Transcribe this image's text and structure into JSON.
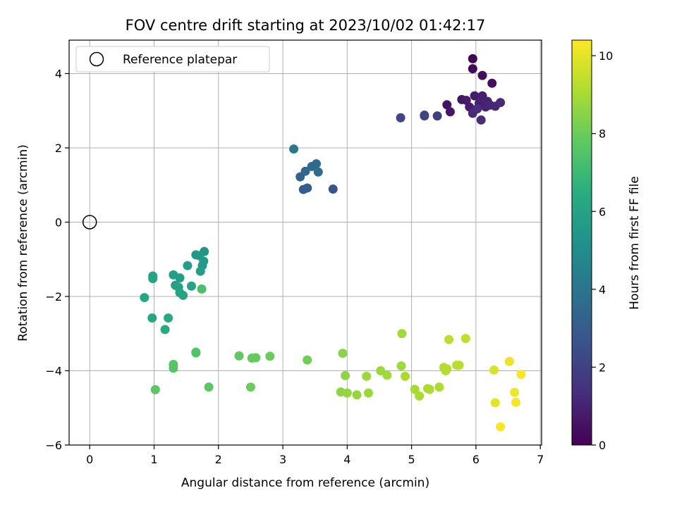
{
  "chart_data": {
    "type": "scatter",
    "title": "FOV centre drift starting at 2023/10/02 01:42:17",
    "xlabel": "Angular distance from reference (arcmin)",
    "ylabel": "Rotation from reference (arcmin)",
    "xlim": [
      -0.32,
      7.02
    ],
    "ylim": [
      -6.0,
      4.9
    ],
    "xticks": [
      0,
      1,
      2,
      3,
      4,
      5,
      6,
      7
    ],
    "yticks": [
      -6,
      -4,
      -2,
      0,
      2,
      4
    ],
    "grid": true,
    "legend": {
      "position": "top-left",
      "entries": [
        "Reference platepar"
      ]
    },
    "reference_point": {
      "x": 0,
      "y": 0
    },
    "colorbar": {
      "label": "Hours from first FF file",
      "range": [
        0,
        10.4
      ],
      "ticks": [
        0,
        2,
        4,
        6,
        8,
        10
      ],
      "colormap": "viridis"
    },
    "points": [
      {
        "x": 5.95,
        "y": 4.4,
        "c": 0.1
      },
      {
        "x": 5.95,
        "y": 4.13,
        "c": 0.2
      },
      {
        "x": 6.1,
        "y": 3.95,
        "c": 0.3
      },
      {
        "x": 6.25,
        "y": 3.74,
        "c": 0.4
      },
      {
        "x": 5.55,
        "y": 3.16,
        "c": 0.5
      },
      {
        "x": 5.6,
        "y": 2.97,
        "c": 0.6
      },
      {
        "x": 5.78,
        "y": 3.3,
        "c": 0.6
      },
      {
        "x": 5.85,
        "y": 3.28,
        "c": 0.7
      },
      {
        "x": 5.9,
        "y": 3.1,
        "c": 0.8
      },
      {
        "x": 5.98,
        "y": 3.4,
        "c": 0.8
      },
      {
        "x": 6.05,
        "y": 3.2,
        "c": 0.9
      },
      {
        "x": 6.1,
        "y": 3.4,
        "c": 0.9
      },
      {
        "x": 6.15,
        "y": 3.1,
        "c": 1.0
      },
      {
        "x": 6.18,
        "y": 3.25,
        "c": 1.0
      },
      {
        "x": 6.22,
        "y": 3.15,
        "c": 1.1
      },
      {
        "x": 6.3,
        "y": 3.12,
        "c": 1.1
      },
      {
        "x": 6.38,
        "y": 3.22,
        "c": 1.2
      },
      {
        "x": 5.95,
        "y": 2.93,
        "c": 1.2
      },
      {
        "x": 6.08,
        "y": 2.75,
        "c": 1.3
      },
      {
        "x": 6.02,
        "y": 3.05,
        "c": 1.3
      },
      {
        "x": 5.4,
        "y": 2.86,
        "c": 1.9
      },
      {
        "x": 5.2,
        "y": 2.86,
        "c": 2.0
      },
      {
        "x": 5.2,
        "y": 2.88,
        "c": 2.1
      },
      {
        "x": 4.83,
        "y": 2.81,
        "c": 2.2
      },
      {
        "x": 3.78,
        "y": 0.89,
        "c": 2.7
      },
      {
        "x": 3.32,
        "y": 0.88,
        "c": 3.0
      },
      {
        "x": 3.38,
        "y": 0.92,
        "c": 3.1
      },
      {
        "x": 3.27,
        "y": 1.22,
        "c": 3.3
      },
      {
        "x": 3.35,
        "y": 1.37,
        "c": 3.4
      },
      {
        "x": 3.45,
        "y": 1.5,
        "c": 3.5
      },
      {
        "x": 3.52,
        "y": 1.57,
        "c": 3.6
      },
      {
        "x": 3.55,
        "y": 1.35,
        "c": 3.7
      },
      {
        "x": 3.17,
        "y": 1.97,
        "c": 4.1
      },
      {
        "x": 1.78,
        "y": -0.79,
        "c": 5.4
      },
      {
        "x": 1.65,
        "y": -0.88,
        "c": 5.5
      },
      {
        "x": 1.7,
        "y": -0.9,
        "c": 5.5
      },
      {
        "x": 1.77,
        "y": -1.05,
        "c": 5.6
      },
      {
        "x": 1.75,
        "y": -1.17,
        "c": 5.6
      },
      {
        "x": 1.72,
        "y": -1.32,
        "c": 5.7
      },
      {
        "x": 1.52,
        "y": -1.17,
        "c": 5.7
      },
      {
        "x": 1.3,
        "y": -1.42,
        "c": 5.8
      },
      {
        "x": 1.4,
        "y": -1.5,
        "c": 5.8
      },
      {
        "x": 1.33,
        "y": -1.7,
        "c": 5.9
      },
      {
        "x": 1.38,
        "y": -1.75,
        "c": 5.9
      },
      {
        "x": 1.4,
        "y": -1.9,
        "c": 6.0
      },
      {
        "x": 1.45,
        "y": -1.97,
        "c": 6.0
      },
      {
        "x": 1.58,
        "y": -1.72,
        "c": 6.0
      },
      {
        "x": 0.98,
        "y": -1.52,
        "c": 6.1
      },
      {
        "x": 0.98,
        "y": -1.45,
        "c": 6.1
      },
      {
        "x": 0.85,
        "y": -2.03,
        "c": 6.2
      },
      {
        "x": 0.97,
        "y": -2.58,
        "c": 6.2
      },
      {
        "x": 1.22,
        "y": -2.58,
        "c": 6.3
      },
      {
        "x": 1.17,
        "y": -2.89,
        "c": 6.3
      },
      {
        "x": 1.74,
        "y": -1.8,
        "c": 7.3
      },
      {
        "x": 1.65,
        "y": -3.5,
        "c": 7.5
      },
      {
        "x": 1.65,
        "y": -3.52,
        "c": 7.5
      },
      {
        "x": 1.3,
        "y": -3.83,
        "c": 7.6
      },
      {
        "x": 1.3,
        "y": -3.93,
        "c": 7.6
      },
      {
        "x": 1.02,
        "y": -4.51,
        "c": 7.7
      },
      {
        "x": 1.85,
        "y": -4.44,
        "c": 7.7
      },
      {
        "x": 2.32,
        "y": -3.6,
        "c": 7.8
      },
      {
        "x": 2.52,
        "y": -3.66,
        "c": 7.9
      },
      {
        "x": 2.58,
        "y": -3.65,
        "c": 7.9
      },
      {
        "x": 2.8,
        "y": -3.61,
        "c": 8.0
      },
      {
        "x": 2.5,
        "y": -4.44,
        "c": 8.0
      },
      {
        "x": 3.38,
        "y": -3.71,
        "c": 8.1
      },
      {
        "x": 3.93,
        "y": -3.53,
        "c": 8.5
      },
      {
        "x": 3.97,
        "y": -4.13,
        "c": 8.6
      },
      {
        "x": 3.9,
        "y": -4.57,
        "c": 8.6
      },
      {
        "x": 4.0,
        "y": -4.6,
        "c": 8.7
      },
      {
        "x": 4.15,
        "y": -4.65,
        "c": 8.7
      },
      {
        "x": 4.3,
        "y": -4.15,
        "c": 8.8
      },
      {
        "x": 4.33,
        "y": -4.6,
        "c": 8.8
      },
      {
        "x": 4.52,
        "y": -4.0,
        "c": 8.8
      },
      {
        "x": 4.62,
        "y": -4.12,
        "c": 8.9
      },
      {
        "x": 4.84,
        "y": -3.87,
        "c": 8.9
      },
      {
        "x": 4.85,
        "y": -3.0,
        "c": 8.9
      },
      {
        "x": 4.9,
        "y": -4.15,
        "c": 9.0
      },
      {
        "x": 5.05,
        "y": -4.5,
        "c": 9.0
      },
      {
        "x": 5.12,
        "y": -4.68,
        "c": 9.0
      },
      {
        "x": 5.25,
        "y": -4.48,
        "c": 9.1
      },
      {
        "x": 5.28,
        "y": -4.5,
        "c": 9.1
      },
      {
        "x": 5.43,
        "y": -4.44,
        "c": 9.1
      },
      {
        "x": 5.5,
        "y": -3.91,
        "c": 9.2
      },
      {
        "x": 5.53,
        "y": -4.0,
        "c": 9.2
      },
      {
        "x": 5.55,
        "y": -3.95,
        "c": 9.2
      },
      {
        "x": 5.58,
        "y": -3.16,
        "c": 9.3
      },
      {
        "x": 5.7,
        "y": -3.85,
        "c": 9.3
      },
      {
        "x": 5.74,
        "y": -3.85,
        "c": 9.3
      },
      {
        "x": 5.84,
        "y": -3.13,
        "c": 9.4
      },
      {
        "x": 6.28,
        "y": -3.98,
        "c": 9.8
      },
      {
        "x": 6.3,
        "y": -4.86,
        "c": 10.0
      },
      {
        "x": 6.52,
        "y": -3.75,
        "c": 10.1
      },
      {
        "x": 6.6,
        "y": -4.58,
        "c": 10.2
      },
      {
        "x": 6.62,
        "y": -4.85,
        "c": 10.3
      },
      {
        "x": 6.7,
        "y": -4.1,
        "c": 10.3
      },
      {
        "x": 6.38,
        "y": -5.51,
        "c": 10.4
      }
    ]
  }
}
